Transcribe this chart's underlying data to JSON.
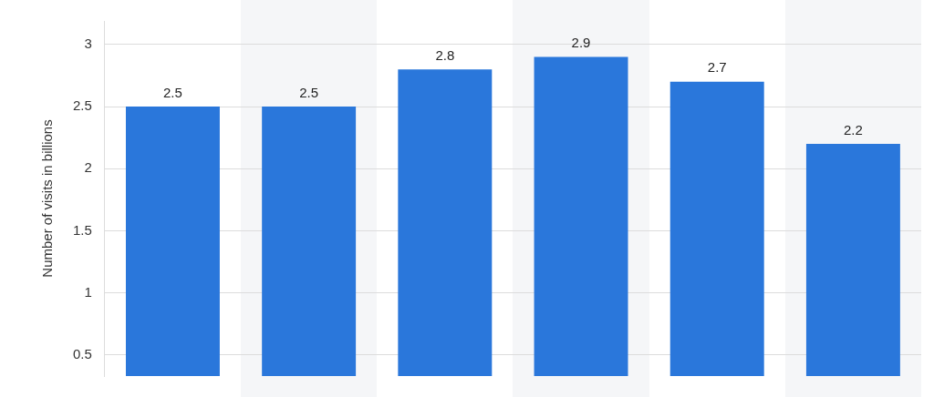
{
  "chart_data": {
    "type": "bar",
    "ylabel": "Number of visits in billions",
    "categories": [
      null,
      null,
      null,
      null,
      null,
      null
    ],
    "values": [
      2.5,
      2.5,
      2.8,
      2.9,
      2.7,
      2.2
    ],
    "color": "#2a77db",
    "ylim": [
      0.33,
      3.19
    ],
    "yticks": [
      0.5,
      1,
      1.5,
      2,
      2.5,
      3
    ],
    "grid": "y",
    "data_labels": true
  }
}
